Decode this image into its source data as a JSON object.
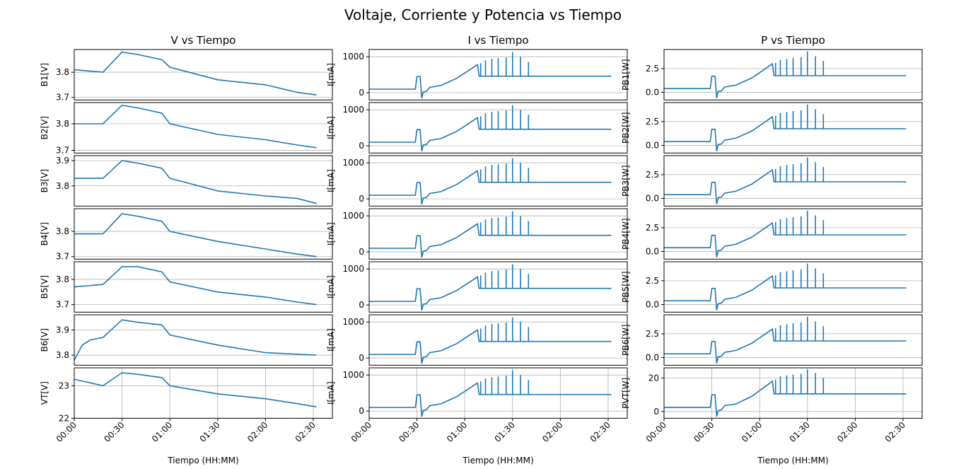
{
  "figure_title": "Voltaje, Corriente y Potencia vs Tiempo",
  "line_color": "#1f77b4",
  "chart_data": [
    {
      "type": "line",
      "column": "V",
      "row": "B1",
      "title": "V vs Tiempo",
      "ylabel": "B1[V]",
      "ylim": [
        3.69,
        3.89
      ],
      "yticks": [
        3.7,
        3.8
      ],
      "grid": "y",
      "x": [
        "00:00",
        "00:18",
        "00:30",
        "00:40",
        "00:55",
        "01:00",
        "01:30",
        "02:00",
        "02:20",
        "02:32"
      ],
      "y": [
        3.81,
        3.8,
        3.88,
        3.87,
        3.85,
        3.82,
        3.77,
        3.75,
        3.72,
        3.71
      ]
    },
    {
      "type": "line",
      "column": "V",
      "row": "B2",
      "ylabel": "B2[V]",
      "ylim": [
        3.69,
        3.88
      ],
      "yticks": [
        3.7,
        3.8
      ],
      "grid": "y",
      "x": [
        "00:00",
        "00:18",
        "00:30",
        "00:40",
        "00:55",
        "01:00",
        "01:30",
        "02:00",
        "02:20",
        "02:32"
      ],
      "y": [
        3.8,
        3.8,
        3.87,
        3.86,
        3.84,
        3.8,
        3.76,
        3.74,
        3.72,
        3.71
      ]
    },
    {
      "type": "line",
      "column": "V",
      "row": "B3",
      "ylabel": "B3[V]",
      "ylim": [
        3.72,
        3.92
      ],
      "yticks": [
        3.8,
        3.9
      ],
      "grid": "y",
      "x": [
        "00:00",
        "00:18",
        "00:30",
        "00:40",
        "00:55",
        "01:00",
        "01:30",
        "02:00",
        "02:20",
        "02:32"
      ],
      "y": [
        3.83,
        3.83,
        3.9,
        3.89,
        3.87,
        3.83,
        3.78,
        3.76,
        3.75,
        3.73
      ]
    },
    {
      "type": "line",
      "column": "V",
      "row": "B4",
      "ylabel": "B4[V]",
      "ylim": [
        3.69,
        3.89
      ],
      "yticks": [
        3.7,
        3.8
      ],
      "grid": "y",
      "x": [
        "00:00",
        "00:18",
        "00:30",
        "00:40",
        "00:55",
        "01:00",
        "01:30",
        "02:00",
        "02:20",
        "02:32"
      ],
      "y": [
        3.79,
        3.79,
        3.87,
        3.86,
        3.84,
        3.8,
        3.76,
        3.73,
        3.71,
        3.7
      ]
    },
    {
      "type": "line",
      "column": "V",
      "row": "B5",
      "ylabel": "B5[V]",
      "ylim": [
        3.67,
        3.87
      ],
      "yticks": [
        3.7,
        3.8
      ],
      "grid": "y",
      "x": [
        "00:00",
        "00:18",
        "00:30",
        "00:40",
        "00:55",
        "01:00",
        "01:30",
        "02:00",
        "02:20",
        "02:32"
      ],
      "y": [
        3.77,
        3.78,
        3.85,
        3.85,
        3.83,
        3.79,
        3.75,
        3.73,
        3.71,
        3.7
      ]
    },
    {
      "type": "line",
      "column": "V",
      "row": "B6",
      "ylabel": "B6[V]",
      "ylim": [
        3.76,
        3.96
      ],
      "yticks": [
        3.8,
        3.9
      ],
      "grid": "y",
      "x": [
        "00:00",
        "00:05",
        "00:10",
        "00:18",
        "00:30",
        "00:40",
        "00:55",
        "01:00",
        "01:30",
        "02:00",
        "02:32"
      ],
      "y": [
        3.78,
        3.84,
        3.86,
        3.87,
        3.94,
        3.93,
        3.92,
        3.88,
        3.84,
        3.81,
        3.8
      ]
    },
    {
      "type": "line",
      "column": "V",
      "row": "VT",
      "ylabel": "VT[V]",
      "xlabel": "Tiempo (HH:MM)",
      "ylim": [
        22,
        23.55
      ],
      "yticks": [
        22,
        23
      ],
      "grid": "both",
      "x": [
        "00:00",
        "00:18",
        "00:30",
        "00:40",
        "00:55",
        "01:00",
        "01:30",
        "02:00",
        "02:20",
        "02:32"
      ],
      "y": [
        23.2,
        23.0,
        23.4,
        23.35,
        23.25,
        23.0,
        22.75,
        22.6,
        22.45,
        22.35
      ],
      "xticks": [
        "00:00",
        "00:30",
        "01:00",
        "01:30",
        "02:00",
        "02:30"
      ]
    },
    {
      "type": "line",
      "column": "I",
      "row": "B1",
      "title": "I vs Tiempo",
      "ylabel": "I[mA]",
      "ylim": [
        -200,
        1200
      ],
      "yticks": [
        0,
        1000
      ],
      "grid": "y",
      "x": [
        "00:00",
        "00:29",
        "00:30",
        "00:32",
        "00:33",
        "00:34",
        "00:36",
        "00:38",
        "00:45",
        "00:55",
        "01:08",
        "01:09",
        "01:30",
        "02:00",
        "02:32"
      ],
      "y": [
        100,
        100,
        450,
        450,
        -150,
        20,
        40,
        150,
        200,
        400,
        780,
        460,
        460,
        460,
        460
      ],
      "spikes_x": [
        "01:10",
        "01:13",
        "01:17",
        "01:21",
        "01:26",
        "01:30",
        "01:35",
        "01:40"
      ],
      "spikes_y": [
        820,
        900,
        940,
        960,
        980,
        1130,
        1000,
        860
      ]
    },
    {
      "type": "line",
      "column": "I",
      "row": "B2",
      "ylabel": "I[mA]",
      "ylim": [
        -200,
        1200
      ],
      "yticks": [
        0,
        1000
      ],
      "grid": "y",
      "x": [
        "00:00",
        "00:29",
        "00:30",
        "00:32",
        "00:33",
        "00:34",
        "00:36",
        "00:38",
        "00:45",
        "00:55",
        "01:08",
        "01:09",
        "01:30",
        "02:00",
        "02:32"
      ],
      "y": [
        100,
        100,
        450,
        450,
        -150,
        20,
        40,
        150,
        200,
        400,
        780,
        460,
        460,
        460,
        460
      ],
      "spikes_x": [
        "01:10",
        "01:13",
        "01:17",
        "01:21",
        "01:26",
        "01:30",
        "01:35",
        "01:40"
      ],
      "spikes_y": [
        820,
        900,
        940,
        960,
        980,
        1130,
        1000,
        860
      ]
    },
    {
      "type": "line",
      "column": "I",
      "row": "B3",
      "ylabel": "I[mA]",
      "ylim": [
        -200,
        1200
      ],
      "yticks": [
        0,
        1000
      ],
      "grid": "y",
      "x": [
        "00:00",
        "00:29",
        "00:30",
        "00:32",
        "00:33",
        "00:34",
        "00:36",
        "00:38",
        "00:45",
        "00:55",
        "01:08",
        "01:09",
        "01:30",
        "02:00",
        "02:32"
      ],
      "y": [
        100,
        100,
        450,
        450,
        -150,
        20,
        40,
        150,
        200,
        400,
        780,
        460,
        460,
        460,
        460
      ],
      "spikes_x": [
        "01:10",
        "01:13",
        "01:17",
        "01:21",
        "01:26",
        "01:30",
        "01:35",
        "01:40"
      ],
      "spikes_y": [
        820,
        900,
        940,
        960,
        980,
        1130,
        1000,
        860
      ]
    },
    {
      "type": "line",
      "column": "I",
      "row": "B4",
      "ylabel": "I[mA]",
      "ylim": [
        -200,
        1200
      ],
      "yticks": [
        0,
        1000
      ],
      "grid": "y",
      "x": [
        "00:00",
        "00:29",
        "00:30",
        "00:32",
        "00:33",
        "00:34",
        "00:36",
        "00:38",
        "00:45",
        "00:55",
        "01:08",
        "01:09",
        "01:30",
        "02:00",
        "02:32"
      ],
      "y": [
        100,
        100,
        450,
        450,
        -150,
        20,
        40,
        150,
        200,
        400,
        780,
        460,
        460,
        460,
        460
      ],
      "spikes_x": [
        "01:10",
        "01:13",
        "01:17",
        "01:21",
        "01:26",
        "01:30",
        "01:35",
        "01:40"
      ],
      "spikes_y": [
        820,
        900,
        940,
        960,
        980,
        1130,
        1000,
        860
      ]
    },
    {
      "type": "line",
      "column": "I",
      "row": "B5",
      "ylabel": "I[mA]",
      "ylim": [
        -200,
        1200
      ],
      "yticks": [
        0,
        1000
      ],
      "grid": "y",
      "x": [
        "00:00",
        "00:29",
        "00:30",
        "00:32",
        "00:33",
        "00:34",
        "00:36",
        "00:38",
        "00:45",
        "00:55",
        "01:08",
        "01:09",
        "01:30",
        "02:00",
        "02:32"
      ],
      "y": [
        100,
        100,
        450,
        450,
        -150,
        20,
        40,
        150,
        200,
        400,
        780,
        460,
        460,
        460,
        460
      ],
      "spikes_x": [
        "01:10",
        "01:13",
        "01:17",
        "01:21",
        "01:26",
        "01:30",
        "01:35",
        "01:40"
      ],
      "spikes_y": [
        820,
        900,
        940,
        960,
        980,
        1130,
        1000,
        860
      ]
    },
    {
      "type": "line",
      "column": "I",
      "row": "B6",
      "ylabel": "I[mA]",
      "ylim": [
        -200,
        1200
      ],
      "yticks": [
        0,
        1000
      ],
      "grid": "y",
      "x": [
        "00:00",
        "00:29",
        "00:30",
        "00:32",
        "00:33",
        "00:34",
        "00:36",
        "00:38",
        "00:45",
        "00:55",
        "01:08",
        "01:09",
        "01:30",
        "02:00",
        "02:32"
      ],
      "y": [
        100,
        100,
        450,
        450,
        -150,
        20,
        40,
        150,
        200,
        400,
        780,
        460,
        460,
        460,
        460
      ],
      "spikes_x": [
        "01:10",
        "01:13",
        "01:17",
        "01:21",
        "01:26",
        "01:30",
        "01:35",
        "01:40"
      ],
      "spikes_y": [
        820,
        900,
        940,
        960,
        980,
        1130,
        1000,
        860
      ]
    },
    {
      "type": "line",
      "column": "I",
      "row": "VT",
      "ylabel": "I[mA]",
      "xlabel": "Tiempo (HH:MM)",
      "ylim": [
        -200,
        1200
      ],
      "yticks": [
        0,
        1000
      ],
      "grid": "both",
      "x": [
        "00:00",
        "00:29",
        "00:30",
        "00:32",
        "00:33",
        "00:34",
        "00:36",
        "00:38",
        "00:45",
        "00:55",
        "01:08",
        "01:09",
        "01:30",
        "02:00",
        "02:32"
      ],
      "y": [
        100,
        100,
        450,
        450,
        -150,
        20,
        40,
        150,
        200,
        400,
        780,
        460,
        460,
        460,
        460
      ],
      "spikes_x": [
        "01:10",
        "01:13",
        "01:17",
        "01:21",
        "01:26",
        "01:30",
        "01:35",
        "01:40"
      ],
      "spikes_y": [
        820,
        900,
        940,
        960,
        980,
        1130,
        1000,
        860
      ],
      "xticks": [
        "00:00",
        "00:30",
        "01:00",
        "01:30",
        "02:00",
        "02:30"
      ]
    },
    {
      "type": "line",
      "column": "P",
      "row": "B1",
      "title": "P vs Tiempo",
      "ylabel": "PB1[W]",
      "ylim": [
        -0.8,
        4.5
      ],
      "yticks": [
        0.0,
        2.5
      ],
      "ytick_labels": [
        "0.0",
        "2.5"
      ],
      "grid": "y",
      "x": [
        "00:00",
        "00:29",
        "00:30",
        "00:32",
        "00:33",
        "00:34",
        "00:36",
        "00:38",
        "00:45",
        "00:55",
        "01:08",
        "01:09",
        "01:30",
        "02:00",
        "02:32"
      ],
      "y": [
        0.4,
        0.4,
        1.7,
        1.7,
        -0.6,
        0.1,
        0.15,
        0.55,
        0.75,
        1.5,
        3.0,
        1.75,
        1.75,
        1.75,
        1.75
      ],
      "spikes_x": [
        "01:10",
        "01:13",
        "01:17",
        "01:21",
        "01:26",
        "01:30",
        "01:35",
        "01:40"
      ],
      "spikes_y": [
        3.1,
        3.4,
        3.5,
        3.6,
        3.7,
        4.3,
        3.8,
        3.3
      ]
    },
    {
      "type": "line",
      "column": "P",
      "row": "B2",
      "ylabel": "PB2[W]",
      "ylim": [
        -0.8,
        4.5
      ],
      "yticks": [
        0.0,
        2.5
      ],
      "ytick_labels": [
        "0.0",
        "2.5"
      ],
      "grid": "y",
      "x": [
        "00:00",
        "00:29",
        "00:30",
        "00:32",
        "00:33",
        "00:34",
        "00:36",
        "00:38",
        "00:45",
        "00:55",
        "01:08",
        "01:09",
        "01:30",
        "02:00",
        "02:32"
      ],
      "y": [
        0.4,
        0.4,
        1.7,
        1.7,
        -0.6,
        0.1,
        0.15,
        0.55,
        0.75,
        1.5,
        3.0,
        1.75,
        1.75,
        1.75,
        1.75
      ],
      "spikes_x": [
        "01:10",
        "01:13",
        "01:17",
        "01:21",
        "01:26",
        "01:30",
        "01:35",
        "01:40"
      ],
      "spikes_y": [
        3.1,
        3.4,
        3.5,
        3.6,
        3.7,
        4.3,
        3.8,
        3.3
      ]
    },
    {
      "type": "line",
      "column": "P",
      "row": "B3",
      "ylabel": "PB3[W]",
      "ylim": [
        -0.8,
        4.5
      ],
      "yticks": [
        0.0,
        2.5
      ],
      "ytick_labels": [
        "0.0",
        "2.5"
      ],
      "grid": "y",
      "x": [
        "00:00",
        "00:29",
        "00:30",
        "00:32",
        "00:33",
        "00:34",
        "00:36",
        "00:38",
        "00:45",
        "00:55",
        "01:08",
        "01:09",
        "01:30",
        "02:00",
        "02:32"
      ],
      "y": [
        0.4,
        0.4,
        1.7,
        1.7,
        -0.6,
        0.1,
        0.15,
        0.55,
        0.75,
        1.5,
        3.0,
        1.75,
        1.75,
        1.75,
        1.75
      ],
      "spikes_x": [
        "01:10",
        "01:13",
        "01:17",
        "01:21",
        "01:26",
        "01:30",
        "01:35",
        "01:40"
      ],
      "spikes_y": [
        3.1,
        3.4,
        3.5,
        3.6,
        3.7,
        4.3,
        3.8,
        3.3
      ]
    },
    {
      "type": "line",
      "column": "P",
      "row": "B4",
      "ylabel": "PB4[W]",
      "ylim": [
        -0.8,
        4.5
      ],
      "yticks": [
        0.0,
        2.5
      ],
      "ytick_labels": [
        "0.0",
        "2.5"
      ],
      "grid": "y",
      "x": [
        "00:00",
        "00:29",
        "00:30",
        "00:32",
        "00:33",
        "00:34",
        "00:36",
        "00:38",
        "00:45",
        "00:55",
        "01:08",
        "01:09",
        "01:30",
        "02:00",
        "02:32"
      ],
      "y": [
        0.4,
        0.4,
        1.7,
        1.7,
        -0.6,
        0.1,
        0.15,
        0.55,
        0.75,
        1.5,
        3.0,
        1.75,
        1.75,
        1.75,
        1.75
      ],
      "spikes_x": [
        "01:10",
        "01:13",
        "01:17",
        "01:21",
        "01:26",
        "01:30",
        "01:35",
        "01:40"
      ],
      "spikes_y": [
        3.1,
        3.4,
        3.5,
        3.6,
        3.7,
        4.3,
        3.8,
        3.3
      ]
    },
    {
      "type": "line",
      "column": "P",
      "row": "B5",
      "ylabel": "PB5[W]",
      "ylim": [
        -0.8,
        4.5
      ],
      "yticks": [
        0.0,
        2.5
      ],
      "ytick_labels": [
        "0.0",
        "2.5"
      ],
      "grid": "y",
      "x": [
        "00:00",
        "00:29",
        "00:30",
        "00:32",
        "00:33",
        "00:34",
        "00:36",
        "00:38",
        "00:45",
        "00:55",
        "01:08",
        "01:09",
        "01:30",
        "02:00",
        "02:32"
      ],
      "y": [
        0.4,
        0.4,
        1.7,
        1.7,
        -0.6,
        0.1,
        0.15,
        0.55,
        0.75,
        1.5,
        3.0,
        1.75,
        1.75,
        1.75,
        1.75
      ],
      "spikes_x": [
        "01:10",
        "01:13",
        "01:17",
        "01:21",
        "01:26",
        "01:30",
        "01:35",
        "01:40"
      ],
      "spikes_y": [
        3.1,
        3.4,
        3.5,
        3.6,
        3.7,
        4.3,
        3.8,
        3.3
      ]
    },
    {
      "type": "line",
      "column": "P",
      "row": "B6",
      "ylabel": "PB6[W]",
      "ylim": [
        -0.8,
        4.5
      ],
      "yticks": [
        0.0,
        2.5
      ],
      "ytick_labels": [
        "0.0",
        "2.5"
      ],
      "grid": "y",
      "x": [
        "00:00",
        "00:29",
        "00:30",
        "00:32",
        "00:33",
        "00:34",
        "00:36",
        "00:38",
        "00:45",
        "00:55",
        "01:08",
        "01:09",
        "01:30",
        "02:00",
        "02:32"
      ],
      "y": [
        0.4,
        0.4,
        1.7,
        1.7,
        -0.6,
        0.1,
        0.15,
        0.55,
        0.75,
        1.5,
        3.0,
        1.75,
        1.75,
        1.75,
        1.75
      ],
      "spikes_x": [
        "01:10",
        "01:13",
        "01:17",
        "01:21",
        "01:26",
        "01:30",
        "01:35",
        "01:40"
      ],
      "spikes_y": [
        3.1,
        3.4,
        3.5,
        3.6,
        3.7,
        4.3,
        3.8,
        3.3
      ]
    },
    {
      "type": "line",
      "column": "P",
      "row": "VT",
      "ylabel": "PVT[W]",
      "xlabel": "Tiempo (HH:MM)",
      "ylim": [
        -4,
        26
      ],
      "yticks": [
        0,
        20
      ],
      "grid": "both",
      "x": [
        "00:00",
        "00:29",
        "00:30",
        "00:32",
        "00:33",
        "00:34",
        "00:36",
        "00:38",
        "00:45",
        "00:55",
        "01:08",
        "01:09",
        "01:30",
        "02:00",
        "02:32"
      ],
      "y": [
        2.5,
        2.5,
        10,
        10,
        -3,
        0.5,
        1,
        3.5,
        4.5,
        9,
        18,
        10.5,
        10.5,
        10.5,
        10.5
      ],
      "spikes_x": [
        "01:10",
        "01:13",
        "01:17",
        "01:21",
        "01:26",
        "01:30",
        "01:35",
        "01:40"
      ],
      "spikes_y": [
        19,
        21,
        21.5,
        22,
        22.5,
        25,
        23,
        20
      ],
      "xticks": [
        "00:00",
        "00:30",
        "01:00",
        "01:30",
        "02:00",
        "02:30"
      ]
    }
  ]
}
